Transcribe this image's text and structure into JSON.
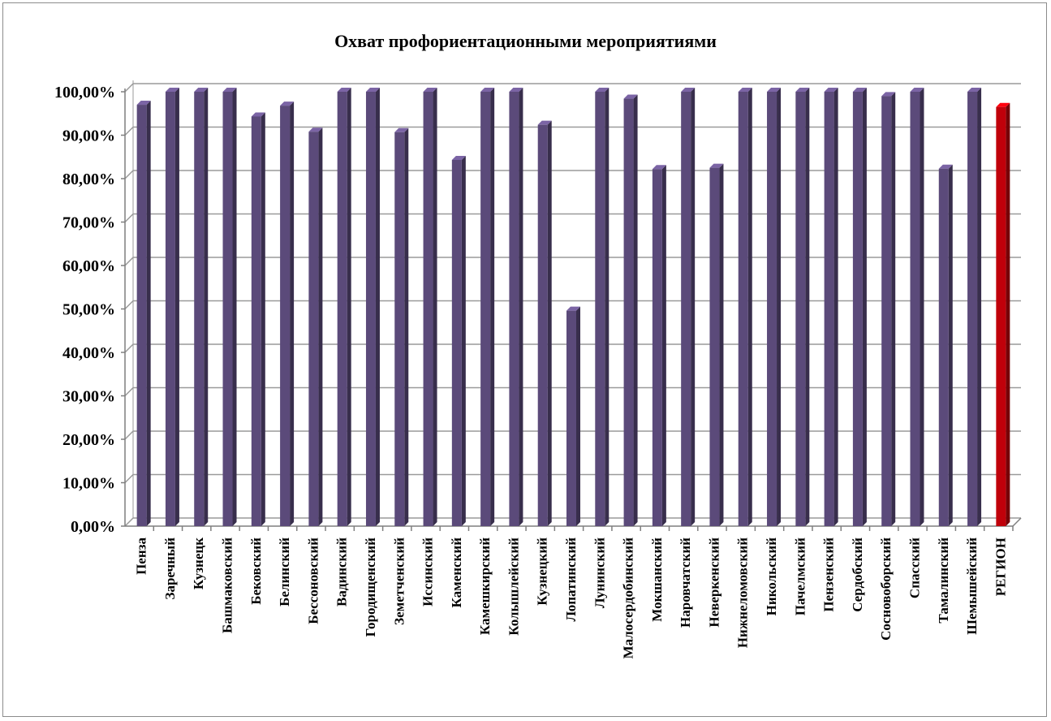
{
  "chart_data": {
    "type": "bar",
    "title": "Охват профориентационными мероприятиями",
    "xlabel": "",
    "ylabel": "",
    "ylim": [
      0,
      100
    ],
    "ytick_labels": [
      "0,00%",
      "10,00%",
      "20,00%",
      "30,00%",
      "40,00%",
      "50,00%",
      "60,00%",
      "70,00%",
      "80,00%",
      "90,00%",
      "100,00%"
    ],
    "grid": true,
    "legend": "none",
    "style": "3d-column",
    "colors": {
      "default": "#5b4a7a",
      "highlight": "#c0000a"
    },
    "highlight_category": "РЕГИОН",
    "categories": [
      "Пенза",
      "Заречный",
      "Кузнецк",
      "Башмаковский",
      "Бековский",
      "Белинский",
      "Бессоновский",
      "Вадинский",
      "Городищенский",
      "Земетченский",
      "Иссинский",
      "Каменский",
      "Камешкирский",
      "Колышлейский",
      "Кузнецкий",
      "Лопатинский",
      "Лунинский",
      "Малосердобинский",
      "Мокшанский",
      "Наровчатский",
      "Неверкенский",
      "Нижнеломовский",
      "Никольский",
      "Пачелмский",
      "Пензенский",
      "Сердобский",
      "Сосновоборский",
      "Спасский",
      "Тамалинский",
      "Шемышейский",
      "РЕГИОН"
    ],
    "values": [
      97.0,
      100.0,
      100.0,
      100.0,
      94.3,
      96.8,
      90.8,
      100.0,
      100.0,
      90.7,
      100.0,
      84.3,
      100.0,
      100.0,
      92.4,
      49.6,
      100.0,
      98.4,
      82.2,
      100.0,
      82.5,
      100.0,
      100.0,
      100.0,
      100.0,
      100.0,
      99.0,
      100.0,
      82.3,
      100.0,
      96.5
    ]
  }
}
